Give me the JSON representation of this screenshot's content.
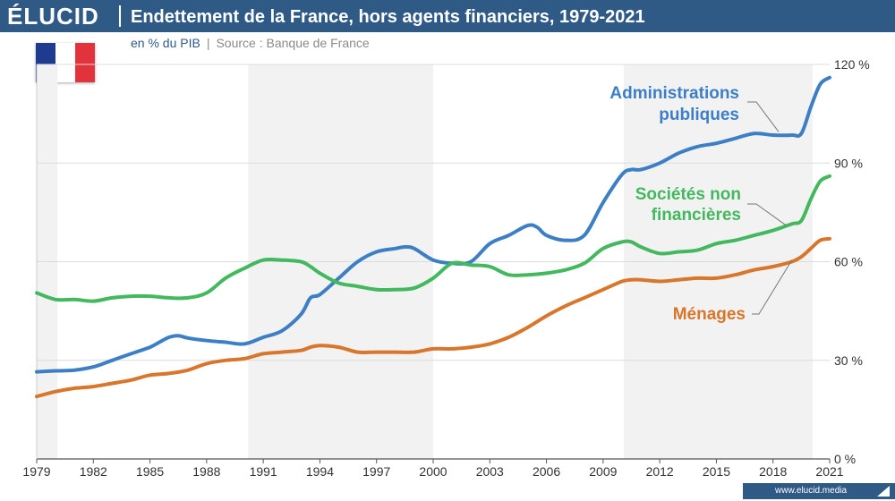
{
  "header": {
    "logo": "ÉLUCID",
    "title": "Endettement de la France, hors agents financiers, 1979-2021",
    "unit": "en % du PIB",
    "separator": "|",
    "source": "Source : Banque de France"
  },
  "footer": {
    "url": "www.elucid.media"
  },
  "flag": {
    "country": "France",
    "colors": [
      "#1f3b8f",
      "#ffffff",
      "#e2323c"
    ]
  },
  "chart_data": {
    "type": "line",
    "title": "Endettement de la France, hors agents financiers, 1979-2021",
    "xlabel": "",
    "ylabel": "",
    "xlim": [
      1979,
      2021
    ],
    "ylim": [
      0,
      120
    ],
    "x_ticks": [
      "1979",
      "1982",
      "1985",
      "1988",
      "1991",
      "1994",
      "1997",
      "2000",
      "2003",
      "2006",
      "2009",
      "2012",
      "2015",
      "2018",
      "2021"
    ],
    "y_ticks": [
      "0 %",
      "30 %",
      "60 %",
      "90 %",
      "120 %"
    ],
    "y_tick_values": [
      0,
      30,
      60,
      90,
      120
    ],
    "grid": true,
    "y_axis_side": "right",
    "shaded_periods": [
      [
        1979,
        1980.1
      ],
      [
        1990.2,
        2000
      ],
      [
        2010.1,
        2020.1
      ]
    ],
    "series": [
      {
        "name": "Administrations publiques",
        "color": "#3c7fc4",
        "x": [
          1979,
          1980,
          1981,
          1982,
          1983,
          1984,
          1985,
          1985.5,
          1986,
          1986.5,
          1987,
          1988,
          1989,
          1990,
          1991,
          1992,
          1993,
          1993.5,
          1994,
          1995,
          1996,
          1997,
          1998,
          1998.5,
          1999,
          2000,
          2001,
          2002,
          2003,
          2004,
          2005,
          2005.5,
          2006,
          2007,
          2008,
          2009,
          2010,
          2010.5,
          2011,
          2012,
          2013,
          2014,
          2015,
          2016,
          2017,
          2018,
          2019,
          2019.5,
          2020,
          2020.5,
          2021
        ],
        "y": [
          26.5,
          26.8,
          27.0,
          28.0,
          30.0,
          32.0,
          34.0,
          35.5,
          37.0,
          37.5,
          36.8,
          36.0,
          35.5,
          35.0,
          37.0,
          39.0,
          44.0,
          49.0,
          50.0,
          55.0,
          60.0,
          63.0,
          64.0,
          64.5,
          64.0,
          60.5,
          59.5,
          60.0,
          65.5,
          68.0,
          71.0,
          70.5,
          68.0,
          66.5,
          68.0,
          78.0,
          86.5,
          88.0,
          88.0,
          90.0,
          93.0,
          95.0,
          96.0,
          97.5,
          99.0,
          98.5,
          98.5,
          99.0,
          107.0,
          114.0,
          116.0
        ]
      },
      {
        "name": "Sociétés non financières",
        "color": "#43b85f",
        "x": [
          1979,
          1980,
          1981,
          1982,
          1983,
          1984,
          1985,
          1986,
          1987,
          1988,
          1989,
          1990,
          1991,
          1992,
          1993,
          1993.5,
          1994,
          1995,
          1996,
          1997,
          1998,
          1999,
          2000,
          2001,
          2002,
          2003,
          2004,
          2005,
          2006,
          2007,
          2008,
          2009,
          2010,
          2010.5,
          2011,
          2012,
          2013,
          2014,
          2015,
          2016,
          2017,
          2018,
          2019,
          2019.5,
          2020,
          2020.5,
          2021
        ],
        "y": [
          50.5,
          48.5,
          48.5,
          48.0,
          49.0,
          49.5,
          49.5,
          49.0,
          49.0,
          50.5,
          55.0,
          58.0,
          60.5,
          60.5,
          60.0,
          58.5,
          56.5,
          53.5,
          52.5,
          51.5,
          51.5,
          52.0,
          55.0,
          59.5,
          59.0,
          58.5,
          56.0,
          56.0,
          56.5,
          57.5,
          59.5,
          64.0,
          66.0,
          66.0,
          64.5,
          62.5,
          63.0,
          63.5,
          65.5,
          66.5,
          68.0,
          69.5,
          71.5,
          72.5,
          79.0,
          84.5,
          86.0
        ]
      },
      {
        "name": "Ménages",
        "color": "#d8762b",
        "x": [
          1979,
          1980,
          1981,
          1982,
          1983,
          1984,
          1985,
          1986,
          1987,
          1988,
          1989,
          1990,
          1991,
          1992,
          1993,
          1993.5,
          1994,
          1995,
          1996,
          1997,
          1998,
          1999,
          2000,
          2001,
          2002,
          2003,
          2004,
          2005,
          2006,
          2007,
          2008,
          2009,
          2010,
          2010.5,
          2011,
          2012,
          2013,
          2014,
          2015,
          2016,
          2017,
          2018,
          2019,
          2019.5,
          2020,
          2020.5,
          2021
        ],
        "y": [
          19.0,
          20.5,
          21.5,
          22.0,
          23.0,
          24.0,
          25.5,
          26.0,
          27.0,
          29.0,
          30.0,
          30.5,
          32.0,
          32.5,
          33.0,
          34.0,
          34.5,
          34.0,
          32.5,
          32.5,
          32.5,
          32.5,
          33.5,
          33.5,
          34.0,
          35.0,
          37.0,
          40.0,
          43.5,
          46.5,
          49.0,
          51.5,
          54.0,
          54.5,
          54.5,
          54.0,
          54.5,
          55.0,
          55.0,
          56.0,
          57.5,
          58.5,
          60.0,
          61.5,
          64.0,
          66.5,
          67.0
        ]
      }
    ],
    "series_labels": {
      "admin_line1": "Administrations",
      "admin_line2": "publiques",
      "snf_line1": "Sociétés non",
      "snf_line2": "financières",
      "menages": "Ménages"
    }
  }
}
